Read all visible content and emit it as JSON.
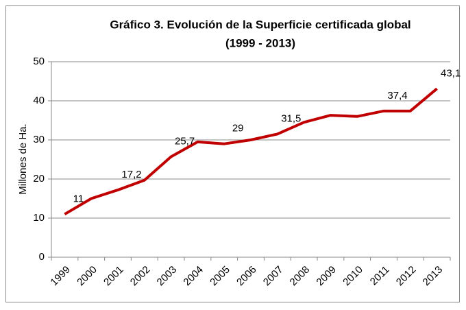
{
  "chart_data": {
    "type": "line",
    "title": "Gráfico 3. Evolución de la Superficie certificada global",
    "subtitle": "(1999 - 2013)",
    "y_label": "Millones de Ha.",
    "categories": [
      "1999",
      "2000",
      "2001",
      "2002",
      "2003",
      "2004",
      "2005",
      "2006",
      "2007",
      "2008",
      "2009",
      "2010",
      "2011",
      "2012",
      "2013"
    ],
    "series": [
      {
        "name": "Superficie certificada",
        "color": "#c00000",
        "values": [
          11,
          15,
          17.2,
          19.7,
          25.7,
          29.5,
          29,
          30,
          31.5,
          34.5,
          36.3,
          36,
          37.4,
          37.4,
          43.1
        ],
        "value_labels": [
          "11",
          null,
          "17,2",
          null,
          "25,7",
          null,
          "29",
          null,
          "31,5",
          null,
          null,
          null,
          "37,4",
          null,
          "43,1"
        ]
      }
    ],
    "ylim": [
      0,
      50
    ],
    "yticks": [
      0,
      10,
      20,
      30,
      40,
      50
    ],
    "grid": true
  }
}
